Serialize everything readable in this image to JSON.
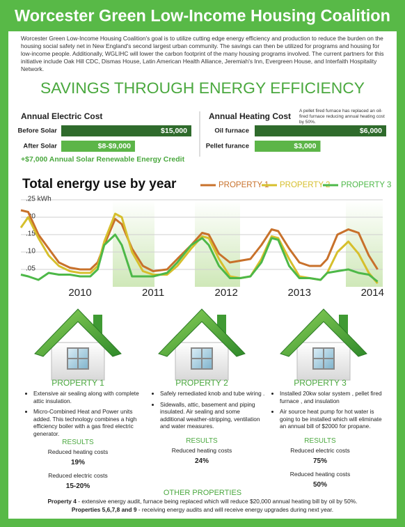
{
  "header": {
    "title": "Worcester Green Low-Income Housing Coalition",
    "intro": "Worcester Green Low-Income Housing Coalition's goal is to utilize cutting edge energy efficiency and production to reduce the burden on the housing social safety net in New England's second largest urban community.  The savings can then be utilized for programs and housing for low-income people.  Additionally, WGLIHC will lower the carbon footprint of the many housing programs involved.  The current partners for this initiative include Oak Hill CDC, Dismas House, Latin American Health Alliance, Jeremiah's Inn, Evergreen House, and Interfaith Hospitality Network."
  },
  "savings_title": "SAVINGS THROUGH ENERGY EFFICIENCY",
  "electric": {
    "title": "Annual Electric Cost",
    "categories": [
      "Before Solar",
      "After Solar"
    ],
    "values": [
      15000,
      8500
    ],
    "value_labels": [
      "$15,000",
      "$8-$9,000"
    ],
    "colors": [
      "#2f6b2c",
      "#5cb548"
    ],
    "note": "+$7,000 Annual Solar Renewable Energy Credit"
  },
  "heating": {
    "title": "Annual Heating Cost",
    "note": "A pellet fired furnace has replaced an oil-fired furnace reducing annual heating cost by 50%.",
    "categories": [
      "Oil furnace",
      "Pellet furance"
    ],
    "values": [
      6000,
      3000
    ],
    "value_labels": [
      "$6,000",
      "$3,000"
    ],
    "colors": [
      "#2f6b2c",
      "#5cb548"
    ]
  },
  "chart_data": {
    "type": "line",
    "title": "Total energy use by year",
    "x": [
      2009.19,
      2009.29,
      2009.43,
      2009.57,
      2009.71,
      2009.86,
      2010.0,
      2010.14,
      2010.24,
      2010.33,
      2010.48,
      2010.57,
      2010.71,
      2010.86,
      2011.0,
      2011.19,
      2011.33,
      2011.52,
      2011.67,
      2011.76,
      2011.9,
      2012.05,
      2012.19,
      2012.33,
      2012.48,
      2012.62,
      2012.71,
      2012.86,
      2013.0,
      2013.14,
      2013.29,
      2013.38,
      2013.52,
      2013.67,
      2013.81,
      2013.95,
      2014.07
    ],
    "xlim": [
      2009.19,
      2014.14
    ],
    "xticks": [
      2010,
      2011,
      2012,
      2013,
      2014
    ],
    "ylim": [
      0,
      0.25
    ],
    "yticks": [
      {
        "value": 0.05,
        "label": ".05"
      },
      {
        "value": 0.1,
        "label": ".10"
      },
      {
        "value": 0.15,
        "label": ".15"
      },
      {
        "value": 0.2,
        "label": ".20"
      },
      {
        "value": 0.25,
        "label": ".25 kWh"
      }
    ],
    "grid": true,
    "legend": "top-right",
    "series": [
      {
        "name": "PROPERTY 1",
        "color": "#c8712b",
        "values": [
          0.22,
          0.215,
          0.15,
          0.11,
          0.07,
          0.055,
          0.05,
          0.05,
          0.07,
          0.12,
          0.195,
          0.18,
          0.11,
          0.06,
          0.045,
          0.05,
          0.08,
          0.12,
          0.155,
          0.15,
          0.095,
          0.07,
          0.075,
          0.08,
          0.12,
          0.165,
          0.16,
          0.11,
          0.07,
          0.06,
          0.06,
          0.08,
          0.15,
          0.165,
          0.155,
          0.09,
          0.05
        ]
      },
      {
        "name": "PROPERTY 2",
        "color": "#d6bf2c",
        "values": [
          0.17,
          0.2,
          0.14,
          0.09,
          0.06,
          0.045,
          0.04,
          0.04,
          0.06,
          0.13,
          0.21,
          0.2,
          0.1,
          0.045,
          0.035,
          0.035,
          0.06,
          0.11,
          0.145,
          0.14,
          0.08,
          0.03,
          0.025,
          0.03,
          0.08,
          0.145,
          0.14,
          0.08,
          0.03,
          0.025,
          0.02,
          0.04,
          0.1,
          0.13,
          0.095,
          0.04,
          0.01
        ]
      },
      {
        "name": "PROPERTY 3",
        "color": "#4db848",
        "values": [
          0.035,
          0.03,
          0.02,
          0.04,
          0.035,
          0.035,
          0.03,
          0.03,
          0.05,
          0.12,
          0.15,
          0.12,
          0.03,
          0.03,
          0.03,
          0.04,
          0.07,
          0.12,
          0.14,
          0.12,
          0.06,
          0.025,
          0.025,
          0.03,
          0.07,
          0.14,
          0.135,
          0.06,
          0.025,
          0.025,
          0.02,
          0.04,
          0.045,
          0.05,
          0.04,
          0.035,
          0.015
        ]
      }
    ]
  },
  "properties": [
    {
      "title": "PROPERTY 1",
      "bullets": [
        "Extensive air sealing along with complete attic insulation.",
        "Micro-Combined Heat and Power units added. This technology combines a high efficiency boiler with a gas fired electric generator."
      ],
      "results_title": "RESULTS",
      "results": [
        {
          "label": "Reduced heating costs",
          "value": "19%"
        },
        {
          "label": "Reduced electric costs",
          "value": "15-20%"
        }
      ]
    },
    {
      "title": "PROPERTY 2",
      "bullets": [
        "Safely remediated knob and tube wiring .",
        "Sidewalls, attic, basement and piping insulated. Air sealing and some additional weather-stripping, ventilation and water measures."
      ],
      "results_title": "RESULTS",
      "results": [
        {
          "label": "Reduced heating costs",
          "value": "24%"
        }
      ]
    },
    {
      "title": "PROPERTY 3",
      "bullets": [
        "Installed 20kw solar system , pellet fired furnace , and insulation",
        "Air source heat pump for hot water is going to be installed which will eliminate an annual bill of $2000 for propane."
      ],
      "results_title": "RESULTS",
      "results": [
        {
          "label": "Reduced electric costs",
          "value": "75%"
        },
        {
          "label": "Reduced heating costs",
          "value": "50%"
        }
      ]
    }
  ],
  "other": {
    "title": "OTHER PROPERTIES",
    "items": [
      {
        "name": "Property 4",
        "text": " - extensive energy audit, furnace being replaced which will reduce $20,000 annual heating bill by oil by 50%."
      },
      {
        "name": "Properties 5,6,7,8 and 9",
        "text": " - receiving energy audits and will receive energy upgrades during next year."
      }
    ]
  }
}
